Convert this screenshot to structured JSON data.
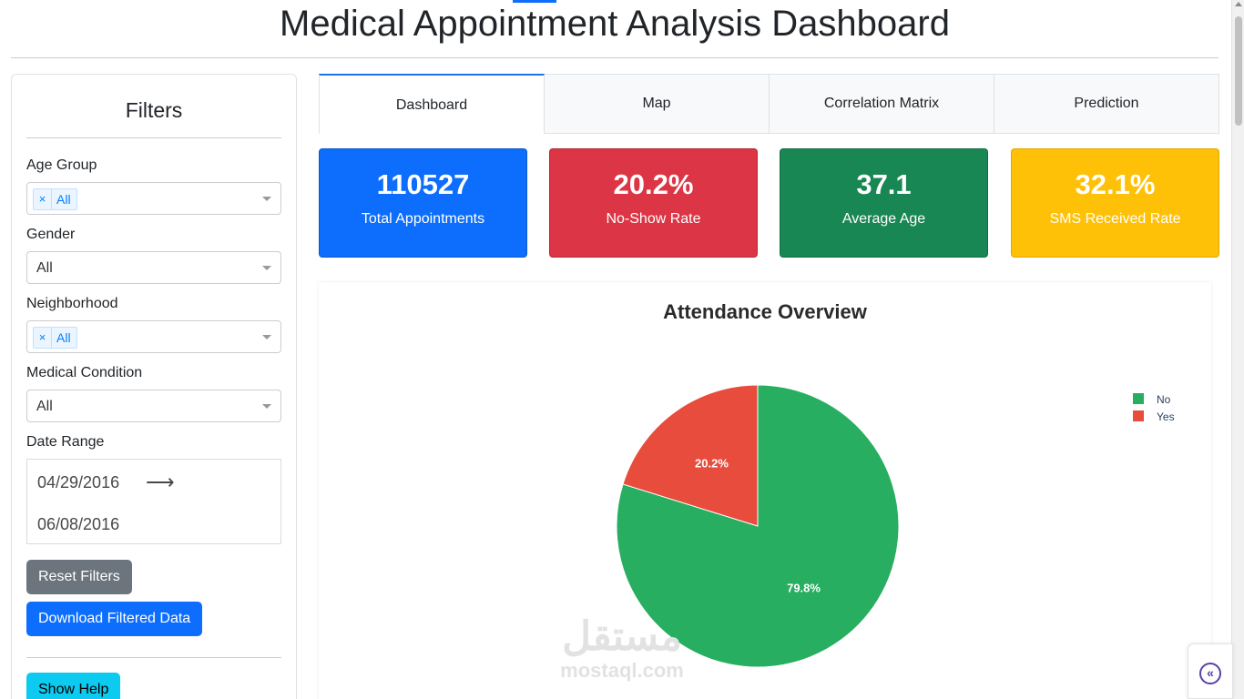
{
  "header": {
    "title": "Medical Appointment Analysis Dashboard"
  },
  "filters": {
    "heading": "Filters",
    "age_group": {
      "label": "Age Group",
      "chip": "All",
      "chip_remove": "×"
    },
    "gender": {
      "label": "Gender",
      "value": "All"
    },
    "neighborhood": {
      "label": "Neighborhood",
      "chip": "All",
      "chip_remove": "×"
    },
    "medical_condition": {
      "label": "Medical Condition",
      "value": "All"
    },
    "date_range": {
      "label": "Date Range",
      "start": "04/29/2016",
      "end": "06/08/2016",
      "arrow": "⟶"
    },
    "reset_label": "Reset Filters",
    "download_label": "Download Filtered Data",
    "help_label": "Show Help"
  },
  "tabs": [
    {
      "label": "Dashboard",
      "active": true
    },
    {
      "label": "Map",
      "active": false
    },
    {
      "label": "Correlation Matrix",
      "active": false
    },
    {
      "label": "Prediction",
      "active": false
    }
  ],
  "kpis": [
    {
      "value": "110527",
      "label": "Total Appointments",
      "color": "#0d6efd"
    },
    {
      "value": "20.2%",
      "label": "No-Show Rate",
      "color": "#dc3545"
    },
    {
      "value": "37.1",
      "label": "Average Age",
      "color": "#198754"
    },
    {
      "value": "32.1%",
      "label": "SMS Received Rate",
      "color": "#ffc107"
    }
  ],
  "chart_data": {
    "type": "pie",
    "title": "Attendance Overview",
    "categories": [
      "No",
      "Yes"
    ],
    "values": [
      79.8,
      20.2
    ],
    "labels": [
      "79.8%",
      "20.2%"
    ],
    "colors": [
      "#27ae60",
      "#e74c3c"
    ],
    "legend_position": "top-right"
  },
  "watermark": {
    "arabic": "مستقل",
    "latin": "mostaql.com"
  },
  "collapse_icon": "«"
}
